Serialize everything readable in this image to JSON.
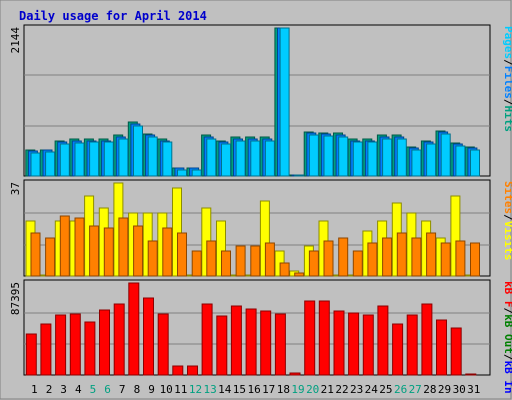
{
  "chart_data": [
    {
      "type": "bar",
      "title": "Daily usage for April 2014",
      "categories": [
        "1",
        "2",
        "3",
        "4",
        "5",
        "6",
        "7",
        "8",
        "9",
        "10",
        "11",
        "12",
        "13",
        "14",
        "15",
        "16",
        "17",
        "18",
        "19",
        "20",
        "21",
        "22",
        "23",
        "24",
        "25",
        "26",
        "27",
        "28",
        "29",
        "30",
        "31"
      ],
      "weekend_categories": [
        "5",
        "6",
        "12",
        "13",
        "19",
        "20",
        "26",
        "27"
      ],
      "ymax_label": "2144",
      "ylim": [
        0,
        2144
      ],
      "right_label": {
        "parts": [
          "Pages",
          "/",
          "Files",
          "/",
          "Hits"
        ],
        "colors": [
          "#00ccff",
          "#000000",
          "#0080ff",
          "#000000",
          "#00a080"
        ]
      },
      "series": [
        {
          "name": "Hits",
          "color": "#00a080",
          "values": [
            374,
            374,
            505,
            533,
            542,
            542,
            589,
            777,
            608,
            542,
            121,
            121,
            589,
            505,
            561,
            561,
            561,
            2144,
            0,
            636,
            627,
            617,
            533,
            533,
            589,
            589,
            420,
            505,
            654,
            477,
            420
          ]
        },
        {
          "name": "Files",
          "color": "#0080ff",
          "values": [
            355,
            374,
            486,
            505,
            514,
            514,
            570,
            748,
            589,
            514,
            112,
            112,
            570,
            486,
            542,
            542,
            542,
            2140,
            0,
            617,
            608,
            598,
            514,
            514,
            570,
            570,
            402,
            486,
            636,
            458,
            402
          ]
        },
        {
          "name": "Pages",
          "color": "#00ccff",
          "values": [
            327,
            346,
            458,
            477,
            486,
            486,
            542,
            720,
            561,
            486,
            93,
            93,
            542,
            458,
            514,
            514,
            514,
            2140,
            0,
            589,
            580,
            570,
            486,
            486,
            542,
            542,
            374,
            458,
            608,
            430,
            374
          ]
        }
      ]
    },
    {
      "type": "bar",
      "ymax_label": "37",
      "ylim": [
        0,
        37
      ],
      "right_label": {
        "parts": [
          "Sites",
          "/",
          "Visits"
        ],
        "colors": [
          "#ff8000",
          "#000000",
          "#ffff00"
        ]
      },
      "series": [
        {
          "name": "Visits",
          "color": "#ffff00",
          "values": [
            22,
            0,
            22,
            22,
            32,
            27,
            37,
            25,
            25,
            25,
            35,
            0,
            27,
            22,
            0,
            0,
            30,
            10,
            2,
            12,
            22,
            0,
            0,
            18,
            22,
            29,
            25,
            22,
            15,
            32,
            0
          ]
        },
        {
          "name": "Sites",
          "color": "#ff8000",
          "values": [
            17,
            15,
            24,
            23,
            20,
            19,
            23,
            20,
            14,
            19,
            17,
            10,
            14,
            10,
            12,
            12,
            13,
            5,
            1,
            10,
            14,
            15,
            10,
            13,
            15,
            17,
            15,
            17,
            13,
            14,
            13
          ]
        }
      ]
    },
    {
      "type": "bar",
      "ymax_label": "87395",
      "ylim": [
        0,
        87395
      ],
      "right_label": {
        "parts": [
          "kB F",
          "/",
          "kB Out",
          "/",
          "kB In"
        ],
        "colors": [
          "#ff0000",
          "#000000",
          "#008000",
          "#000000",
          "#0000ff"
        ]
      },
      "series": [
        {
          "name": "kB F",
          "color": "#ff0000",
          "values": [
            39000,
            48000,
            57000,
            58000,
            50000,
            62000,
            67000,
            87395,
            73000,
            58000,
            9000,
            9000,
            67000,
            56000,
            66000,
            63000,
            61000,
            58000,
            2000,
            70000,
            70000,
            61000,
            59000,
            57000,
            66000,
            48000,
            57000,
            67000,
            52000,
            45000,
            0
          ]
        }
      ]
    }
  ]
}
